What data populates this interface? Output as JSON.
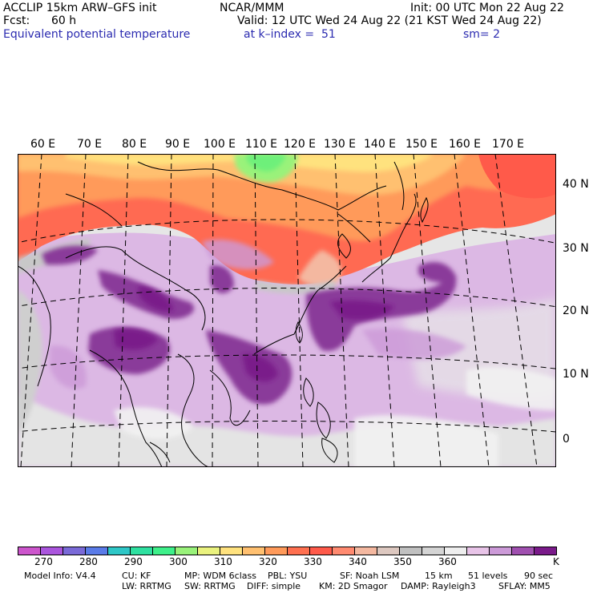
{
  "header": {
    "model": "ACCLIP 15km ARW–GFS init",
    "forecast_label": "Fcst:",
    "forecast_value": "60 h",
    "field_name": "Equivalent potential temperature",
    "org": "NCAR/MMM",
    "init": "Init: 00 UTC Mon 22 Aug 22",
    "valid": "Valid: 12 UTC Wed 24 Aug 22 (21 KST Wed 24 Aug 22)",
    "level": "at k–index =  51",
    "smoothing": "sm= 2"
  },
  "map": {
    "lon_labels": [
      "60 E",
      "70 E",
      "80 E",
      "90 E",
      "100 E",
      "110 E",
      "120 E",
      "130 E",
      "140 E",
      "150 E",
      "160 E",
      "170 E"
    ],
    "lat_labels": [
      "40 N",
      "30 N",
      "20 N",
      "10 N",
      "0"
    ]
  },
  "colorbar": {
    "colors": [
      "#cc55cc",
      "#aa55dd",
      "#7a6ad8",
      "#5a7be8",
      "#2ec7c7",
      "#2ee0a0",
      "#3ef08a",
      "#99f27a",
      "#eaf27e",
      "#ffe27e",
      "#ffc070",
      "#ff9a5a",
      "#ff7050",
      "#ff5a4a",
      "#ff8a70",
      "#f4b8a0",
      "#ddc8c0",
      "#c0c0c0",
      "#d4d4d4",
      "#eeeeee",
      "#e8c4e8",
      "#cc9ad8",
      "#a050b0",
      "#7a1a8a"
    ],
    "labels": [
      "270",
      "280",
      "290",
      "300",
      "310",
      "320",
      "330",
      "340",
      "350",
      "360"
    ],
    "unit": "K"
  },
  "footer": {
    "line1": [
      "Model Info: V4.4",
      "CU: KF",
      "MP: WDM 6class",
      "PBL: YSU",
      "SF: Noah LSM",
      "15 km",
      "51 levels",
      "90 sec"
    ],
    "line2": [
      "LW: RRTMG",
      "SW: RRTMG",
      "DIFF: simple",
      "KM: 2D Smagor",
      "DAMP: Rayleigh3",
      "SFLAY: MM5"
    ]
  }
}
